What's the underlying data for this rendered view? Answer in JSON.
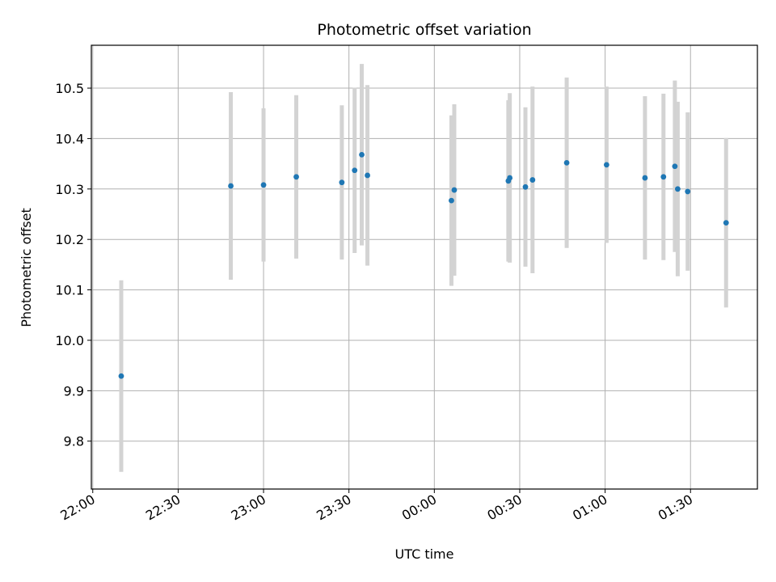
{
  "chart_data": {
    "type": "scatter",
    "title": "Photometric offset variation",
    "xlabel": "UTC time",
    "ylabel": "Photometric offset",
    "x_ticks": [
      "22:00",
      "22:30",
      "23:00",
      "23:30",
      "00:00",
      "00:30",
      "01:00",
      "01:30"
    ],
    "x_tick_minutes": [
      0,
      30,
      60,
      90,
      120,
      150,
      180,
      210
    ],
    "xlim_minutes": [
      -0.5,
      233.5
    ],
    "y_ticks": [
      "9.8",
      "9.9",
      "10.0",
      "10.1",
      "10.2",
      "10.3",
      "10.4",
      "10.5"
    ],
    "y_tick_values": [
      9.8,
      9.9,
      10.0,
      10.1,
      10.2,
      10.3,
      10.4,
      10.5
    ],
    "ylim": [
      9.705,
      10.585
    ],
    "grid": true,
    "marker_color": "#1f77b4",
    "errorbar_color": "#d3d3d3",
    "points": [
      {
        "t": 10.0,
        "y": 9.929,
        "err": 0.19
      },
      {
        "t": 48.5,
        "y": 10.306,
        "err": 0.186
      },
      {
        "t": 60.0,
        "y": 10.308,
        "err": 0.152
      },
      {
        "t": 71.5,
        "y": 10.324,
        "err": 0.162
      },
      {
        "t": 87.5,
        "y": 10.313,
        "err": 0.153
      },
      {
        "t": 92.0,
        "y": 10.337,
        "err": 0.164
      },
      {
        "t": 94.5,
        "y": 10.368,
        "err": 0.18
      },
      {
        "t": 96.5,
        "y": 10.327,
        "err": 0.179
      },
      {
        "t": 126.0,
        "y": 10.277,
        "err": 0.169
      },
      {
        "t": 127.0,
        "y": 10.298,
        "err": 0.17
      },
      {
        "t": 146.0,
        "y": 10.316,
        "err": 0.16
      },
      {
        "t": 146.5,
        "y": 10.322,
        "err": 0.168
      },
      {
        "t": 152.0,
        "y": 10.304,
        "err": 0.158
      },
      {
        "t": 154.5,
        "y": 10.318,
        "err": 0.185
      },
      {
        "t": 166.5,
        "y": 10.352,
        "err": 0.169
      },
      {
        "t": 180.5,
        "y": 10.348,
        "err": 0.155
      },
      {
        "t": 194.0,
        "y": 10.322,
        "err": 0.162
      },
      {
        "t": 200.5,
        "y": 10.324,
        "err": 0.165
      },
      {
        "t": 204.5,
        "y": 10.345,
        "err": 0.17
      },
      {
        "t": 205.5,
        "y": 10.3,
        "err": 0.173
      },
      {
        "t": 209.0,
        "y": 10.295,
        "err": 0.157
      },
      {
        "t": 222.5,
        "y": 10.233,
        "err": 0.168
      }
    ]
  }
}
